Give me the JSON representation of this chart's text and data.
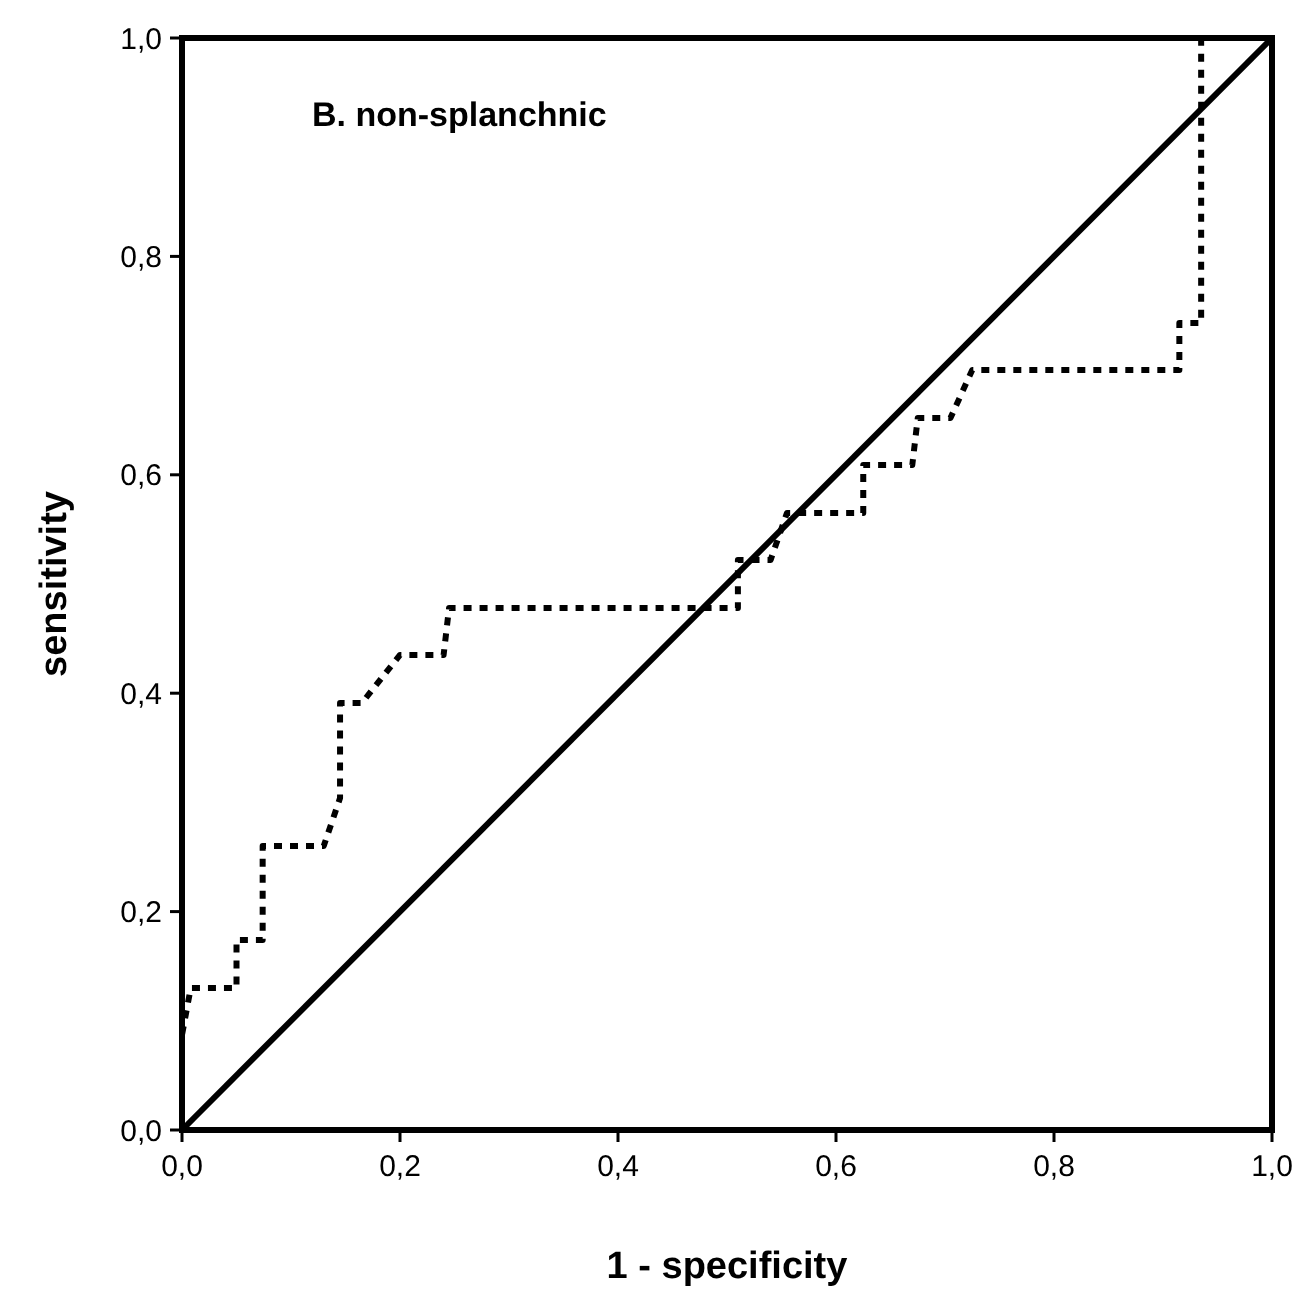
{
  "chart_data": {
    "type": "line",
    "title": "B. non-splanchnic",
    "xlabel": "1 - specificity",
    "ylabel": "sensitivity",
    "xlim": [
      0,
      1
    ],
    "ylim": [
      0,
      1
    ],
    "xticks": [
      {
        "value": 0,
        "label": "0,0"
      },
      {
        "value": 0.2,
        "label": "0,2"
      },
      {
        "value": 0.4,
        "label": "0,4"
      },
      {
        "value": 0.6,
        "label": "0,6"
      },
      {
        "value": 0.8,
        "label": "0,8"
      },
      {
        "value": 1,
        "label": "1,0"
      }
    ],
    "yticks": [
      {
        "value": 0,
        "label": "0,0"
      },
      {
        "value": 0.2,
        "label": "0,2"
      },
      {
        "value": 0.4,
        "label": "0,4"
      },
      {
        "value": 0.6,
        "label": "0,6"
      },
      {
        "value": 0.8,
        "label": "0,8"
      },
      {
        "value": 1,
        "label": "1,0"
      }
    ],
    "grid": false,
    "marker": "none",
    "series": [
      {
        "color": "#000000",
        "line_style": "dotted",
        "x": [
          0,
          0,
          0.008,
          0.05,
          0.05,
          0.074,
          0.074,
          0.13,
          0.145,
          0.145,
          0.165,
          0.2,
          0.24,
          0.245,
          0.51,
          0.51,
          0.54,
          0.555,
          0.625,
          0.625,
          0.67,
          0.675,
          0.705,
          0.725,
          0.915,
          0.915,
          0.935,
          0.935,
          1
        ],
        "values": [
          0,
          0.087,
          0.13,
          0.13,
          0.174,
          0.174,
          0.26,
          0.26,
          0.304,
          0.391,
          0.391,
          0.435,
          0.435,
          0.478,
          0.478,
          0.522,
          0.522,
          0.565,
          0.565,
          0.609,
          0.609,
          0.652,
          0.652,
          0.696,
          0.696,
          0.739,
          0.739,
          1,
          1
        ]
      },
      {
        "color": "#000000",
        "line_style": "solid",
        "x": [
          0,
          1
        ],
        "values": [
          0,
          1
        ]
      }
    ]
  }
}
